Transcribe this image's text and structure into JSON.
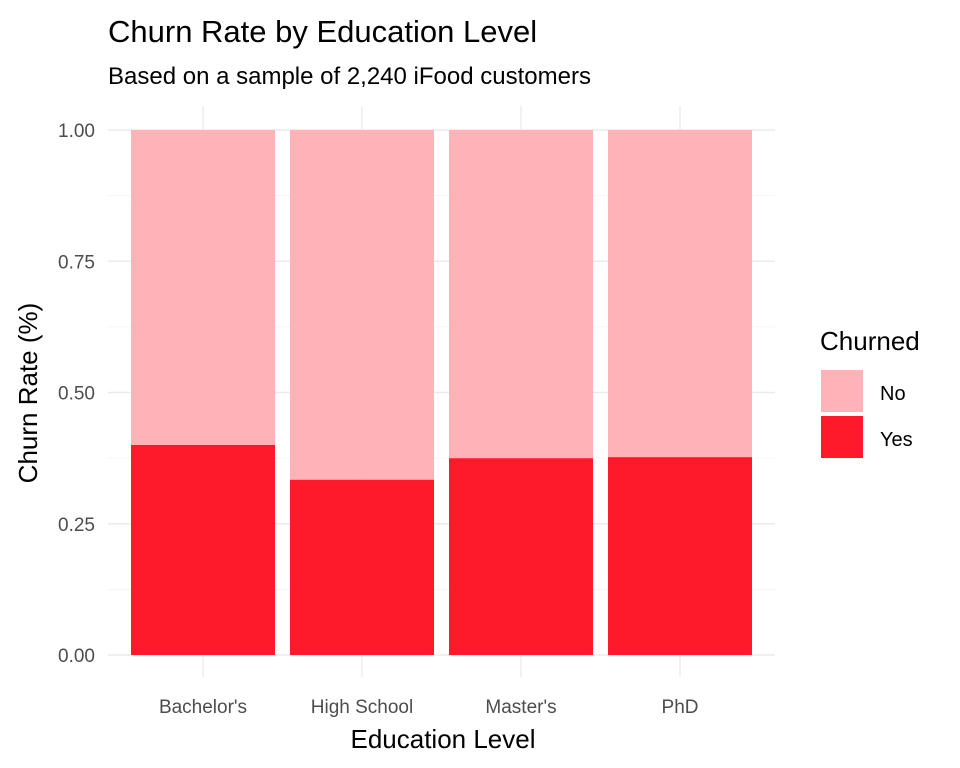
{
  "chart_data": {
    "type": "bar",
    "stacked": true,
    "title": "Churn Rate by Education Level",
    "subtitle": "Based on a sample of 2,240 iFood customers",
    "xlabel": "Education Level",
    "ylabel": "Churn Rate (%)",
    "categories": [
      "Bachelor's",
      "High School",
      "Master's",
      "PhD"
    ],
    "series": [
      {
        "name": "Yes",
        "color": "#ff1a2b",
        "values": [
          0.4,
          0.334,
          0.375,
          0.377
        ]
      },
      {
        "name": "No",
        "color": "#ffb3b9",
        "values": [
          0.6,
          0.666,
          0.625,
          0.623
        ]
      }
    ],
    "ylim": [
      0,
      1
    ],
    "yticks": [
      "0.00",
      "0.25",
      "0.50",
      "0.75",
      "1.00"
    ],
    "ytick_values": [
      0,
      0.25,
      0.5,
      0.75,
      1.0
    ],
    "grid": true,
    "legend": {
      "title": "Churned",
      "placement": "right",
      "entries": [
        {
          "label": "No",
          "color": "#ffb3b9"
        },
        {
          "label": "Yes",
          "color": "#ff1a2b"
        }
      ]
    }
  }
}
